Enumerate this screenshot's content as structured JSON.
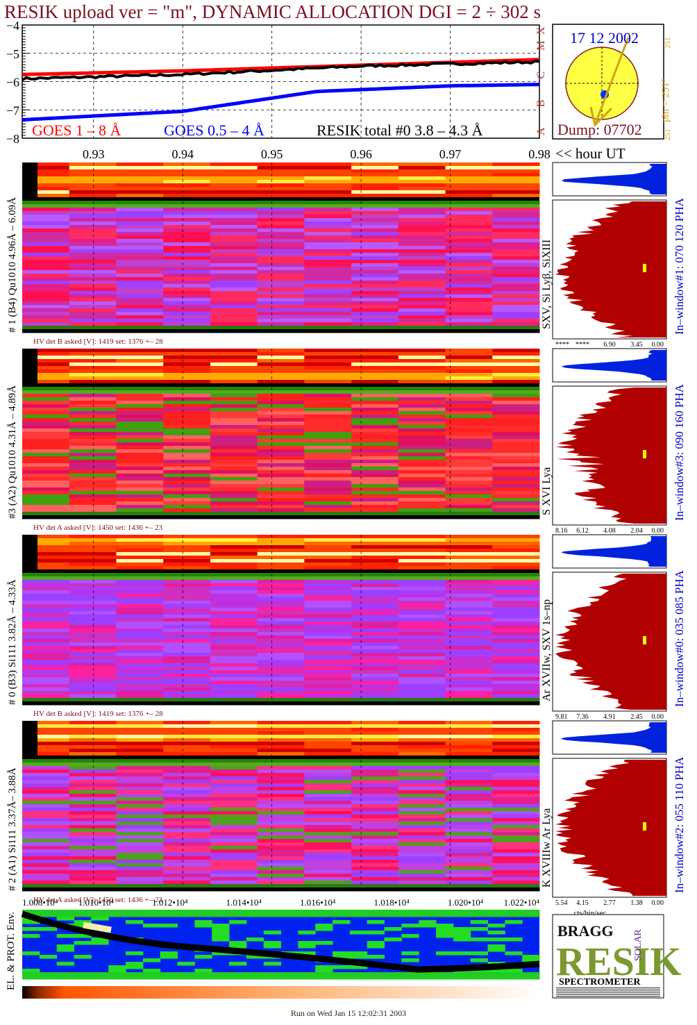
{
  "title": "RESIK upload ver = \"m\", DYNAMIC ALLOCATION  DGI =   2 ÷ 302 s",
  "top_plot": {
    "y_ticks": [
      "−4",
      "−5",
      "−6",
      "−7",
      "−8"
    ],
    "legend": [
      {
        "label": "GOES 1 – 8 Å",
        "color": "#ff0000"
      },
      {
        "label": "GOES 0.5 – 4 Å",
        "color": "#0000ff"
      },
      {
        "label": "RESIK total #0  3.8 – 4.3 Å",
        "color": "#000000"
      }
    ],
    "goes_class_labels": [
      "X",
      "M",
      "C",
      "B",
      "A"
    ]
  },
  "sun_panel": {
    "date": "17 12 2002",
    "dump": "Dump: 07702",
    "phi_label": "phi = 251°",
    "phi_top": "251",
    "phi_bottom": "251"
  },
  "hour_axis": {
    "ticks": [
      "0.93",
      "0.94",
      "0.95",
      "0.96",
      "0.97",
      "0.98"
    ],
    "label": "<< hour UT"
  },
  "panels": [
    {
      "left_label": "# 1 (B4) Qu1010 4.96Å – 6.09Å",
      "line_label": "SXV, Si Lyβ, SiXIII",
      "hv_text": "HV det B asked [V]:  1419 set:  1376 +–   28",
      "window_label": "In–window#1:  070 120 PHA",
      "x_ticks": [
        "****",
        "****",
        "6.90",
        "3.45",
        "0.00"
      ]
    },
    {
      "left_label": "#3 (A2) Qu1010  4.31Å – 4.89Å",
      "line_label": "S XVI Lya",
      "hv_text": "HV det A asked [V]:  1450 set:  1436 +–   23",
      "window_label": "In–window#3:  090 160 PHA",
      "x_ticks": [
        "8.16",
        "6.12",
        "4.08",
        "2.04",
        "0.00"
      ]
    },
    {
      "left_label": "# 0 (B3) Si111  3.82Å – 4.33Å",
      "line_label": "Ar XVIIw, SXV 1s–np",
      "hv_text": "HV det B asked [V]:  1419 set:  1376 +–   28",
      "window_label": "In–window#0:  035 085 PHA",
      "x_ticks": [
        "9.81",
        "7.36",
        "4.91",
        "2.45",
        "0.00"
      ]
    },
    {
      "left_label": "# 2 (A1) Si111  3.37Å– 3.88Å",
      "line_label": "K XVIIIw  Ar Lya",
      "hv_text": "HV det A asked [V]:  1450 set:  1436 +–   23",
      "window_label": "In–window#2:  055 110 PHA",
      "x_ticks": [
        "5.54",
        "4.15",
        "2.77",
        "1.38",
        "0.00"
      ]
    }
  ],
  "bottom_axis": {
    "ticks": [
      "1.008•10⁴",
      "1.010•10⁴",
      "1.012•10⁴",
      "1.014•10⁴",
      "1.016•10⁴",
      "1.018•10⁴",
      "1.020•10⁴",
      "1.022•10⁴"
    ],
    "unit": "cts/bin/sec"
  },
  "env_label": "EL. & PROT. Env.",
  "logo": {
    "letters": "RESIK",
    "bragg": "BRAGG",
    "solar": "SOLAR",
    "caption": "SPECTROMETER"
  },
  "footer": "Run on Wed Jan 15 12:02:31 2003",
  "chart_data": [
    {
      "type": "line",
      "title": "RESIK upload ver = \"m\", DYNAMIC ALLOCATION  DGI =   2 ÷ 302 s",
      "ylim": [
        -8,
        -4
      ],
      "series": [
        {
          "name": "GOES 1 – 8 Å",
          "x": [
            0.922,
            0.94,
            0.96,
            0.98
          ],
          "values": [
            -5.75,
            -5.62,
            -5.42,
            -5.22
          ]
        },
        {
          "name": "GOES 0.5 – 4 Å",
          "x": [
            0.922,
            0.94,
            0.955,
            0.97,
            0.98
          ],
          "values": [
            -7.35,
            -7.05,
            -6.35,
            -6.15,
            -6.1
          ]
        },
        {
          "name": "RESIK total #0  3.8 – 4.3 Å",
          "x": [
            0.922,
            0.94,
            0.96,
            0.98
          ],
          "values": [
            -5.9,
            -5.75,
            -5.45,
            -5.3
          ]
        }
      ]
    },
    {
      "type": "heatmap",
      "xlabel": "<< hour UT",
      "x_ticks": [
        0.93,
        0.94,
        0.95,
        0.96,
        0.97,
        0.98
      ],
      "panels": [
        "#1 (B4) Qu1010",
        "#3 (A2) Qu1010",
        "#0 (B3) Si111",
        "#2 (A1) Si111"
      ]
    }
  ]
}
